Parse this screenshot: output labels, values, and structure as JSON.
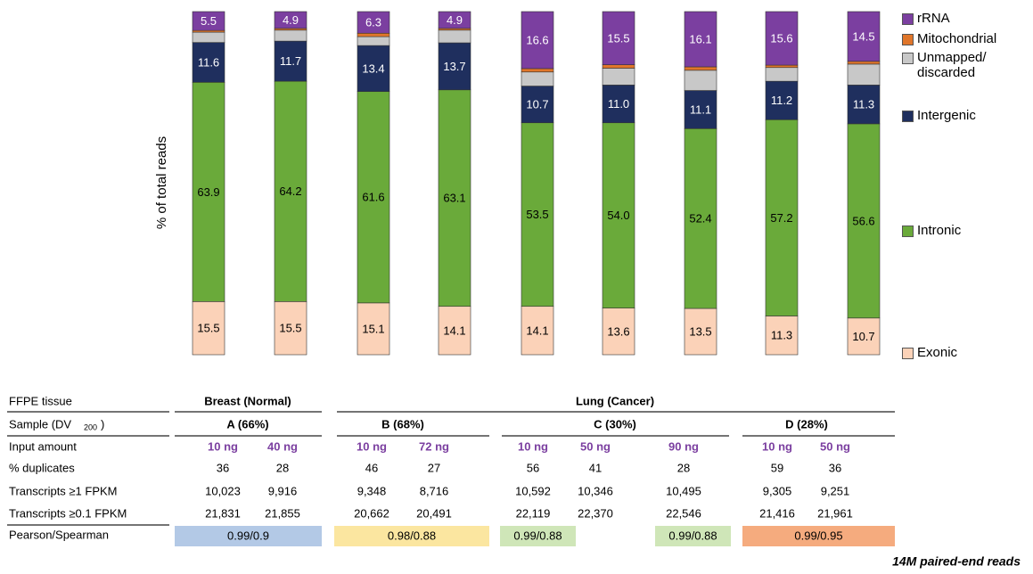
{
  "chart_data": {
    "type": "stacked_bar",
    "ylabel": "% of total reads",
    "ylim": [
      0,
      100
    ],
    "categories": [
      "A 10 ng",
      "A 40 ng",
      "B 10 ng",
      "B 72 ng",
      "C 10 ng",
      "C 50 ng",
      "C 90 ng",
      "D 10 ng",
      "D 50 ng"
    ],
    "series": [
      {
        "name": "rRNA",
        "color": "#7b3fa0",
        "label_color": "#ffffff",
        "values": [
          5.5,
          4.9,
          6.3,
          4.9,
          16.6,
          15.5,
          16.1,
          15.6,
          14.5
        ],
        "value_labels": [
          "5.5",
          "4.9",
          "6.3",
          "4.9",
          "16.6",
          "15.5",
          "16.1",
          "15.6",
          "14.5"
        ]
      },
      {
        "name": "Mitochondrial",
        "color": "#e0762a",
        "values": [
          0.5,
          0.5,
          1.0,
          0.5,
          1.0,
          1.0,
          1.0,
          0.7,
          0.8
        ]
      },
      {
        "name": "Unmapped/ discarded",
        "color": "#c8c8c8",
        "values": [
          3.0,
          3.2,
          2.6,
          3.7,
          4.1,
          4.9,
          5.9,
          4.0,
          6.1
        ]
      },
      {
        "name": "Intergenic",
        "color": "#1f2f5e",
        "label_color": "#ffffff",
        "values": [
          11.6,
          11.7,
          13.4,
          13.7,
          10.7,
          11.0,
          11.1,
          11.2,
          11.3
        ],
        "value_labels": [
          "11.6",
          "11.7",
          "13.4",
          "13.7",
          "10.7",
          "11.0",
          "11.1",
          "11.2",
          "11.3"
        ]
      },
      {
        "name": "Intronic",
        "color": "#6aaa3a",
        "label_color": "#000000",
        "values": [
          63.9,
          64.2,
          61.6,
          63.1,
          53.5,
          54.0,
          52.4,
          57.2,
          56.6
        ],
        "value_labels": [
          "63.9",
          "64.2",
          "61.6",
          "63.1",
          "53.5",
          "54.0",
          "52.4",
          "57.2",
          "56.6"
        ]
      },
      {
        "name": "Exonic",
        "color": "#fbd2b8",
        "label_color": "#000000",
        "values": [
          15.5,
          15.5,
          15.1,
          14.1,
          14.1,
          13.6,
          13.5,
          11.3,
          10.7
        ],
        "value_labels": [
          "15.5",
          "15.5",
          "15.1",
          "14.1",
          "14.1",
          "13.6",
          "13.5",
          "11.3",
          "10.7"
        ]
      }
    ]
  },
  "table": {
    "tissue": {
      "label": "FFPE tissue",
      "groups": [
        "Breast (Normal)",
        "Lung (Cancer)"
      ]
    },
    "sample": {
      "label": [
        "Sample (DV",
        "200",
        ")"
      ],
      "groups": [
        "A (66%)",
        "B (68%)",
        "C (30%)",
        "D (28%)"
      ]
    },
    "rows": [
      {
        "label": "Input amount",
        "cells": [
          "10 ng",
          "40 ng",
          "10 ng",
          "72 ng",
          "10 ng",
          "50 ng",
          "90 ng",
          "10 ng",
          "50 ng"
        ]
      },
      {
        "label": "% duplicates",
        "cells": [
          "36",
          "28",
          "46",
          "27",
          "56",
          "41",
          "28",
          "59",
          "36"
        ]
      },
      {
        "label": "Transcripts ≥1 FPKM",
        "cells": [
          "10,023",
          "9,916",
          "9,348",
          "8,716",
          "10,592",
          "10,346",
          "10,495",
          "9,305",
          "9,251"
        ]
      },
      {
        "label": "Transcripts ≥0.1 FPKM",
        "cells": [
          "21,831",
          "21,855",
          "20,662",
          "20,491",
          "22,119",
          "22,370",
          "22,546",
          "21,416",
          "21,961"
        ]
      }
    ],
    "pearson": {
      "label": "Pearson/Spearman",
      "cells": [
        {
          "text": "0.99/0.9",
          "color": "#b3c9e6"
        },
        {
          "text": "0.98/0.88",
          "color": "#fbe6a0"
        },
        {
          "text": "0.99/0.88",
          "color": "#cfe6b8"
        },
        {
          "text": "0.99/0.88",
          "color": "#cfe6b8"
        },
        {
          "text": "0.99/0.95",
          "color": "#f5ab7e"
        }
      ]
    },
    "footnote": "14M paired-end reads"
  }
}
